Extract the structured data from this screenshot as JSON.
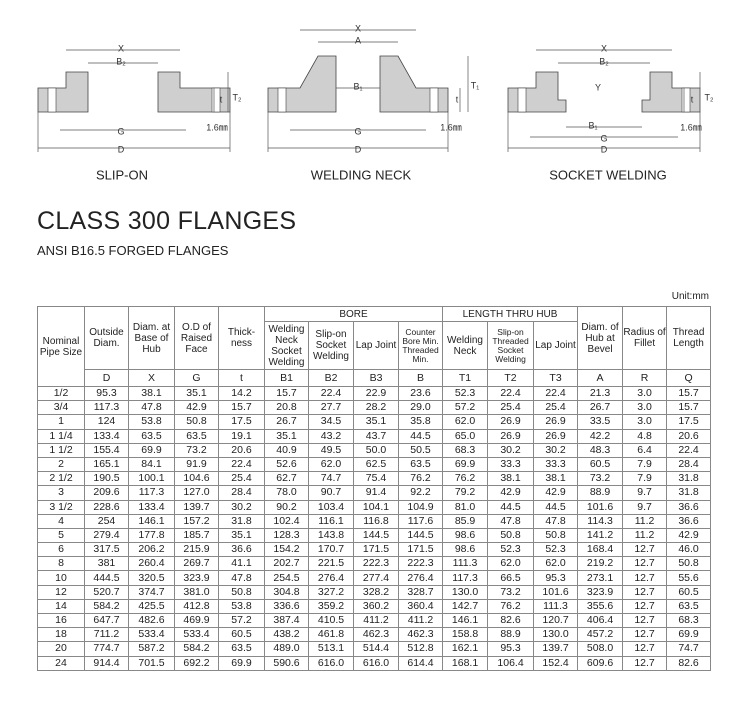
{
  "diagrams": [
    {
      "caption": "SLIP-ON",
      "labels": [
        "X",
        "B₂",
        "G",
        "D",
        "1.6㎜",
        "t",
        "T₂"
      ]
    },
    {
      "caption": "WELDING NECK",
      "labels": [
        "X",
        "A",
        "B₁",
        "G",
        "D",
        "1.6㎜",
        "t",
        "T₁"
      ]
    },
    {
      "caption": "SOCKET WELDING",
      "labels": [
        "X",
        "B₂",
        "Y",
        "B₁",
        "G",
        "D",
        "1.6㎜",
        "t",
        "T₂"
      ]
    }
  ],
  "header": {
    "title": "CLASS 300 FLANGES",
    "subtitle": "ANSI B16.5 FORGED FLANGES",
    "unit": "Unit:mm"
  },
  "table": {
    "lead_columns": [
      "Nominal Pipe Size",
      "Outside Diam.",
      "Diam. at Base of Hub",
      "O.D of Raised Face",
      "Thick-ness"
    ],
    "bore": {
      "title": "BORE",
      "columns": [
        "Welding Neck Socket Welding",
        "Slip-on Socket Welding",
        "Lap Joint",
        "Counter Bore Min. Threaded Min."
      ]
    },
    "length": {
      "title": "LENGTH THRU HUB",
      "columns": [
        "Welding Neck",
        "Slip-on Threaded Socket Welding",
        "Lap Joint"
      ]
    },
    "tail_columns": [
      "Diam. of Hub at Bevel",
      "Radius of Fillet",
      "Thread Length"
    ],
    "symbols": [
      "D",
      "X",
      "G",
      "t",
      "B1",
      "B2",
      "B3",
      "B",
      "T1",
      "T2",
      "T3",
      "A",
      "R",
      "Q"
    ],
    "rows": [
      [
        "1/2",
        "95.3",
        "38.1",
        "35.1",
        "14.2",
        "15.7",
        "22.4",
        "22.9",
        "23.6",
        "52.3",
        "22.4",
        "22.4",
        "21.3",
        "3.0",
        "15.7"
      ],
      [
        "3/4",
        "117.3",
        "47.8",
        "42.9",
        "15.7",
        "20.8",
        "27.7",
        "28.2",
        "29.0",
        "57.2",
        "25.4",
        "25.4",
        "26.7",
        "3.0",
        "15.7"
      ],
      [
        "1",
        "124",
        "53.8",
        "50.8",
        "17.5",
        "26.7",
        "34.5",
        "35.1",
        "35.8",
        "62.0",
        "26.9",
        "26.9",
        "33.5",
        "3.0",
        "17.5"
      ],
      [
        "1 1/4",
        "133.4",
        "63.5",
        "63.5",
        "19.1",
        "35.1",
        "43.2",
        "43.7",
        "44.5",
        "65.0",
        "26.9",
        "26.9",
        "42.2",
        "4.8",
        "20.6"
      ],
      [
        "1 1/2",
        "155.4",
        "69.9",
        "73.2",
        "20.6",
        "40.9",
        "49.5",
        "50.0",
        "50.5",
        "68.3",
        "30.2",
        "30.2",
        "48.3",
        "6.4",
        "22.4"
      ],
      [
        "2",
        "165.1",
        "84.1",
        "91.9",
        "22.4",
        "52.6",
        "62.0",
        "62.5",
        "63.5",
        "69.9",
        "33.3",
        "33.3",
        "60.5",
        "7.9",
        "28.4"
      ],
      [
        "2 1/2",
        "190.5",
        "100.1",
        "104.6",
        "25.4",
        "62.7",
        "74.7",
        "75.4",
        "76.2",
        "76.2",
        "38.1",
        "38.1",
        "73.2",
        "7.9",
        "31.8"
      ],
      [
        "3",
        "209.6",
        "117.3",
        "127.0",
        "28.4",
        "78.0",
        "90.7",
        "91.4",
        "92.2",
        "79.2",
        "42.9",
        "42.9",
        "88.9",
        "9.7",
        "31.8"
      ],
      [
        "3 1/2",
        "228.6",
        "133.4",
        "139.7",
        "30.2",
        "90.2",
        "103.4",
        "104.1",
        "104.9",
        "81.0",
        "44.5",
        "44.5",
        "101.6",
        "9.7",
        "36.6"
      ],
      [
        "4",
        "254",
        "146.1",
        "157.2",
        "31.8",
        "102.4",
        "116.1",
        "116.8",
        "117.6",
        "85.9",
        "47.8",
        "47.8",
        "114.3",
        "11.2",
        "36.6"
      ],
      [
        "5",
        "279.4",
        "177.8",
        "185.7",
        "35.1",
        "128.3",
        "143.8",
        "144.5",
        "144.5",
        "98.6",
        "50.8",
        "50.8",
        "141.2",
        "11.2",
        "42.9"
      ],
      [
        "6",
        "317.5",
        "206.2",
        "215.9",
        "36.6",
        "154.2",
        "170.7",
        "171.5",
        "171.5",
        "98.6",
        "52.3",
        "52.3",
        "168.4",
        "12.7",
        "46.0"
      ],
      [
        "8",
        "381",
        "260.4",
        "269.7",
        "41.1",
        "202.7",
        "221.5",
        "222.3",
        "222.3",
        "111.3",
        "62.0",
        "62.0",
        "219.2",
        "12.7",
        "50.8"
      ],
      [
        "10",
        "444.5",
        "320.5",
        "323.9",
        "47.8",
        "254.5",
        "276.4",
        "277.4",
        "276.4",
        "117.3",
        "66.5",
        "95.3",
        "273.1",
        "12.7",
        "55.6"
      ],
      [
        "12",
        "520.7",
        "374.7",
        "381.0",
        "50.8",
        "304.8",
        "327.2",
        "328.2",
        "328.7",
        "130.0",
        "73.2",
        "101.6",
        "323.9",
        "12.7",
        "60.5"
      ],
      [
        "14",
        "584.2",
        "425.5",
        "412.8",
        "53.8",
        "336.6",
        "359.2",
        "360.2",
        "360.4",
        "142.7",
        "76.2",
        "111.3",
        "355.6",
        "12.7",
        "63.5"
      ],
      [
        "16",
        "647.7",
        "482.6",
        "469.9",
        "57.2",
        "387.4",
        "410.5",
        "411.2",
        "411.2",
        "146.1",
        "82.6",
        "120.7",
        "406.4",
        "12.7",
        "68.3"
      ],
      [
        "18",
        "711.2",
        "533.4",
        "533.4",
        "60.5",
        "438.2",
        "461.8",
        "462.3",
        "462.3",
        "158.8",
        "88.9",
        "130.0",
        "457.2",
        "12.7",
        "69.9"
      ],
      [
        "20",
        "774.7",
        "587.2",
        "584.2",
        "63.5",
        "489.0",
        "513.1",
        "514.4",
        "512.8",
        "162.1",
        "95.3",
        "139.7",
        "508.0",
        "12.7",
        "74.7"
      ],
      [
        "24",
        "914.4",
        "701.5",
        "692.2",
        "69.9",
        "590.6",
        "616.0",
        "616.0",
        "614.4",
        "168.1",
        "106.4",
        "152.4",
        "609.6",
        "12.7",
        "82.6"
      ]
    ]
  }
}
